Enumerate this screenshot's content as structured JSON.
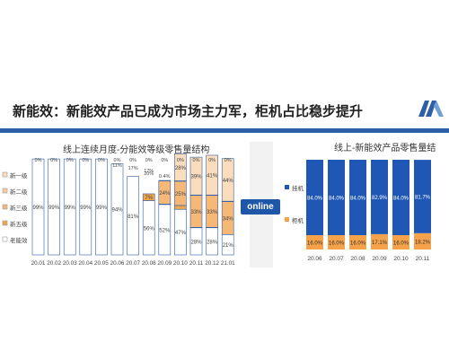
{
  "page": {
    "title": "新能效：新能效产品已成为市场主力军，柜机占比稳步提升",
    "badge": "online"
  },
  "logo": {
    "name": "brand-logo"
  },
  "chart_data": [
    {
      "type": "bar",
      "title": "线上连续月度-分能效等级零售量结构",
      "categories": [
        "20.01",
        "20.02",
        "20.03",
        "20.04",
        "20.05",
        "20.06",
        "20.07",
        "20.08",
        "20.09",
        "20.10",
        "20.11",
        "20.12",
        "21.01"
      ],
      "series": [
        {
          "name": "老能效",
          "color": "#ffffff",
          "values": [
            99,
            99,
            99,
            99,
            99,
            94,
            81,
            56,
            52,
            47,
            28,
            28,
            21
          ]
        },
        {
          "name": "新五级",
          "color": "#f0a64a",
          "values": [
            0,
            0,
            0,
            0,
            0,
            0,
            0,
            7,
            0.4,
            4,
            0.4,
            0.4,
            0
          ]
        },
        {
          "name": "新三级",
          "color": "#f6b877",
          "values": [
            0,
            0,
            0,
            0,
            0,
            0,
            0,
            0,
            24,
            25,
            33,
            33,
            34
          ]
        },
        {
          "name": "新二级",
          "color": "#f9cc9f",
          "values": [
            0,
            0,
            0,
            0,
            0,
            0,
            0,
            0,
            0.4,
            0.4,
            0.4,
            0.4,
            0.4
          ]
        },
        {
          "name": "新一级",
          "color": "#fbdcbc",
          "values": [
            0,
            0,
            0,
            0,
            0,
            0,
            0,
            0,
            0,
            28,
            39,
            41,
            44
          ]
        }
      ],
      "bar_labels": [
        {
          "category": "20.06",
          "text": "11%"
        },
        {
          "category": "20.07",
          "text": "17%"
        },
        {
          "category": "20.08",
          "text": "17%"
        },
        {
          "category": "20.08",
          "text": "20%"
        },
        {
          "category": "20.09",
          "text": "0.4%"
        }
      ],
      "top_labels": [
        "0%",
        "0%",
        "0%",
        "0%",
        "0%",
        "0%",
        "0%",
        "0%",
        "0%",
        "0%",
        "0%",
        "0%",
        "0%"
      ],
      "legend": [
        "新一级",
        "新二级",
        "新三级",
        "新五级",
        "老能效"
      ],
      "legend_position": "left",
      "ylim": [
        0,
        100
      ]
    },
    {
      "type": "bar",
      "title": "线上-新能效产品零售量结",
      "categories": [
        "20.06",
        "20.07",
        "20.08",
        "20.09",
        "20.10",
        "20.11"
      ],
      "series": [
        {
          "name": "柜机",
          "color": "#f5a24a",
          "values": [
            16.0,
            16.0,
            16.0,
            17.1,
            16.0,
            18.2
          ]
        },
        {
          "name": "挂机",
          "color": "#1f57b5",
          "values": [
            84.0,
            84.0,
            84.0,
            82.9,
            84.0,
            81.7
          ]
        }
      ],
      "labels": {
        "柜机": [
          "16.0%",
          "16.0%",
          "16.0%",
          "17.1%",
          "16.0%",
          "18.2%"
        ],
        "挂机": [
          "84.0%",
          "84.0%",
          "84.0%",
          "82.9%",
          "84.0%",
          "81.7%"
        ]
      },
      "legend": [
        "挂机",
        "柜机"
      ],
      "legend_position": "left",
      "ylim": [
        0,
        100
      ]
    }
  ]
}
